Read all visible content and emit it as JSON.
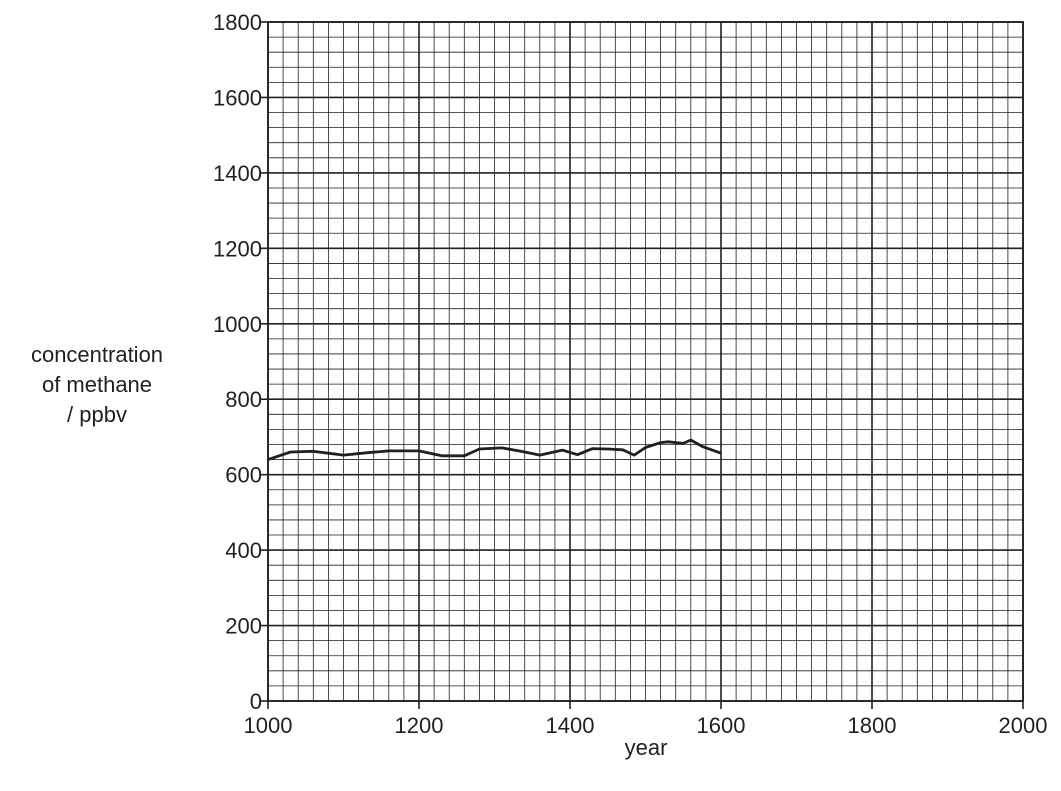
{
  "chart_data": {
    "type": "line",
    "title": "",
    "xlabel": "year",
    "ylabel_lines": [
      "concentration",
      "of methane",
      "/ ppbv"
    ],
    "xlim": [
      1000,
      2000
    ],
    "ylim": [
      0,
      1800
    ],
    "x_ticks": [
      1000,
      1200,
      1400,
      1600,
      1800,
      2000
    ],
    "y_ticks": [
      0,
      200,
      400,
      600,
      800,
      1000,
      1200,
      1400,
      1600,
      1800
    ],
    "x_minor_step": 20,
    "y_minor_step": 40,
    "grid": true,
    "line_color": "#231f20",
    "grid_color": "#231f20",
    "series": [
      {
        "x": [
          1000,
          1030,
          1060,
          1100,
          1130,
          1160,
          1200,
          1230,
          1260,
          1280,
          1310,
          1340,
          1360,
          1390,
          1410,
          1430,
          1450,
          1470,
          1485,
          1500,
          1520,
          1530,
          1550,
          1560,
          1575,
          1600
        ],
        "y": [
          640,
          660,
          662,
          652,
          658,
          663,
          663,
          650,
          650,
          668,
          671,
          660,
          652,
          665,
          653,
          669,
          668,
          666,
          652,
          672,
          685,
          687,
          683,
          692,
          675,
          657
        ]
      }
    ]
  }
}
